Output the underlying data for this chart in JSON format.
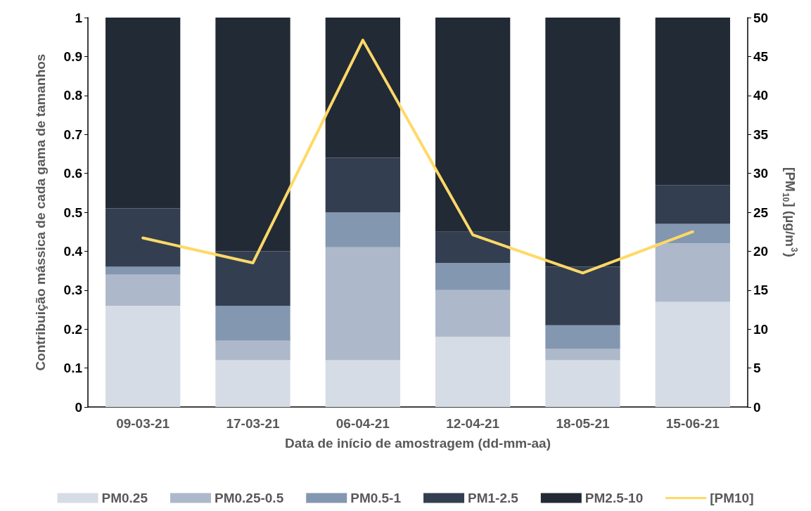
{
  "chart_data": {
    "type": "bar",
    "stacked": true,
    "xlabel": "Data de início de amostragem (dd-mm-aa)",
    "ylabel": "Contribuição mássica de cada gama de tamanhos",
    "y2label": "[PM$_{10}$] (µg/m$^{3}$)",
    "categories": [
      "09-03-21",
      "17-03-21",
      "06-04-21",
      "12-04-21",
      "18-05-21",
      "15-06-21"
    ],
    "series": [
      {
        "name": "PM0.25",
        "color": "#d6dce5",
        "values": [
          0.26,
          0.12,
          0.12,
          0.18,
          0.12,
          0.27
        ]
      },
      {
        "name": "PM0.25-0.5",
        "color": "#adb9ca",
        "values": [
          0.08,
          0.05,
          0.29,
          0.12,
          0.03,
          0.15
        ]
      },
      {
        "name": "PM0.5-1",
        "color": "#8497b0",
        "values": [
          0.02,
          0.09,
          0.09,
          0.07,
          0.06,
          0.05
        ]
      },
      {
        "name": "PM1-2.5",
        "color": "#333f50",
        "values": [
          0.15,
          0.14,
          0.14,
          0.08,
          0.15,
          0.1
        ]
      },
      {
        "name": "PM2.5-10",
        "color": "#222a35",
        "values": [
          0.49,
          0.6,
          0.36,
          0.55,
          0.64,
          0.43
        ]
      },
      {
        "name": "[PM10]",
        "type": "line",
        "axis": "y2",
        "color": "#ffd966",
        "marker": "none",
        "line_style": "solid",
        "values": [
          21.7,
          18.5,
          47.1,
          22.1,
          17.2,
          22.5
        ]
      }
    ],
    "ylim": [
      0,
      1
    ],
    "yticks": [
      0,
      0.1,
      0.2,
      0.3,
      0.4,
      0.5,
      0.6,
      0.7,
      0.8,
      0.9,
      1
    ],
    "y2lim": [
      0,
      50
    ],
    "y2ticks": [
      0,
      5,
      10,
      15,
      20,
      25,
      30,
      35,
      40,
      45,
      50
    ],
    "grid": false,
    "legend": "bottom"
  }
}
